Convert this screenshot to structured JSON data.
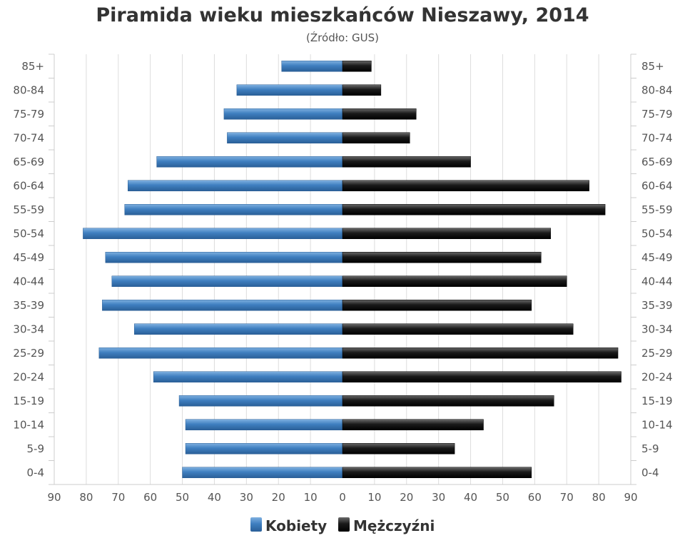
{
  "colors": {
    "female": "#3b78b8",
    "male": "#151515",
    "grid": "#dddddd",
    "axis": "#cccccc"
  },
  "chart_data": {
    "type": "bar",
    "orientation": "horizontal",
    "title": "Piramida wieku mieszkańców Nieszawy, 2014",
    "subtitle": "(Źródło: GUS)",
    "categories": [
      "85+",
      "80-84",
      "75-79",
      "70-74",
      "65-69",
      "60-64",
      "55-59",
      "50-54",
      "45-49",
      "40-44",
      "35-39",
      "30-34",
      "25-29",
      "20-24",
      "15-19",
      "10-14",
      "5-9",
      "0-4"
    ],
    "x_ticks": [
      "90",
      "80",
      "70",
      "60",
      "50",
      "40",
      "30",
      "20",
      "10",
      "0",
      "10",
      "20",
      "30",
      "40",
      "50",
      "60",
      "70",
      "80",
      "90"
    ],
    "xlim": [
      -90,
      90
    ],
    "grid": true,
    "legend_position": "bottom-center",
    "series": [
      {
        "name": "Kobiety",
        "values": [
          19,
          33,
          37,
          36,
          58,
          67,
          68,
          81,
          74,
          72,
          75,
          65,
          76,
          59,
          51,
          49,
          49,
          50
        ]
      },
      {
        "name": "Mężczyźni",
        "values": [
          9,
          12,
          23,
          21,
          40,
          77,
          82,
          65,
          62,
          70,
          59,
          72,
          86,
          87,
          66,
          44,
          35,
          59
        ]
      }
    ]
  }
}
